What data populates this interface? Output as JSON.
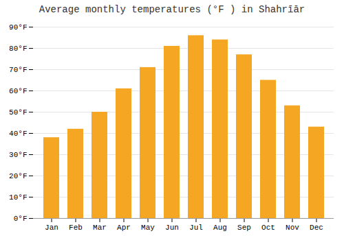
{
  "chart_data": {
    "type": "bar",
    "title": "Average monthly temperatures (°F ) in Shahrīār",
    "categories": [
      "Jan",
      "Feb",
      "Mar",
      "Apr",
      "May",
      "Jun",
      "Jul",
      "Aug",
      "Sep",
      "Oct",
      "Nov",
      "Dec"
    ],
    "values": [
      38,
      42,
      50,
      61,
      71,
      81,
      86,
      84,
      77,
      65,
      53,
      43
    ],
    "color": "#F5A623",
    "ylim": [
      0,
      90
    ],
    "yticks": [
      {
        "value": 0,
        "label": "0°F"
      },
      {
        "value": 10,
        "label": "10°F"
      },
      {
        "value": 20,
        "label": "20°F"
      },
      {
        "value": 30,
        "label": "30°F"
      },
      {
        "value": 40,
        "label": "40°F"
      },
      {
        "value": 50,
        "label": "50°F"
      },
      {
        "value": 60,
        "label": "60°F"
      },
      {
        "value": 70,
        "label": "70°F"
      },
      {
        "value": 80,
        "label": "80°F"
      },
      {
        "value": 90,
        "label": "90°F"
      }
    ],
    "grid": true
  }
}
